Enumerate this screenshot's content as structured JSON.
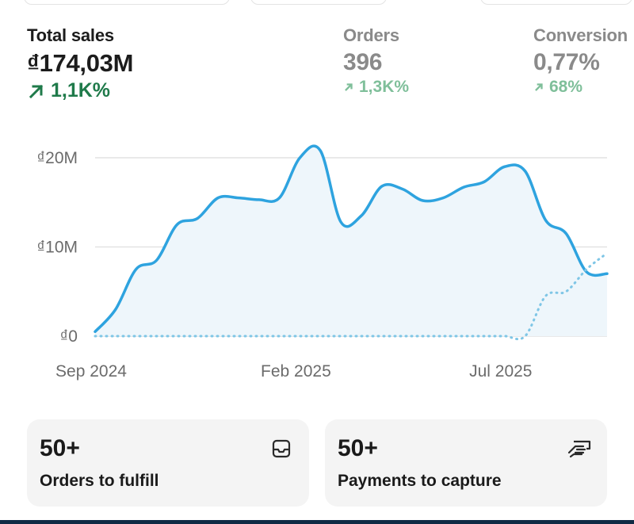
{
  "metrics": [
    {
      "label": "Total sales",
      "value": "₫174,03M",
      "change": "1,1K%"
    },
    {
      "label": "Orders",
      "value": "396",
      "change": "1,3K%"
    },
    {
      "label": "Conversion",
      "value": "0,77%",
      "change": "68%"
    }
  ],
  "chart_data": {
    "type": "line",
    "x_labels": [
      "Sep 2024",
      "Feb 2025",
      "Jul 2025"
    ],
    "y_ticks": [
      "₫0",
      "₫10M",
      "₫20M"
    ],
    "ylim": [
      0,
      20
    ],
    "y_unit": "₫M",
    "grid": true,
    "series": [
      {
        "style": "solid",
        "color": "#2ea3df",
        "values": [
          0.5,
          3,
          7.5,
          8.5,
          12.5,
          13.2,
          15.5,
          15.5,
          15.3,
          15.5,
          20,
          20.8,
          12.8,
          13.5,
          16.8,
          16.5,
          15.2,
          15.5,
          16.7,
          17.3,
          19.0,
          18.5,
          13,
          11.5,
          7.2,
          7.0
        ]
      },
      {
        "style": "dotted",
        "color": "#7fc6e6",
        "values": [
          0,
          0,
          0,
          0,
          0,
          0,
          0,
          0,
          0,
          0,
          0,
          0,
          0,
          0,
          0,
          0,
          0,
          0,
          0,
          0,
          0,
          0,
          4.5,
          5,
          7.5,
          9.3
        ]
      }
    ]
  },
  "cards": [
    {
      "count": "50+",
      "label": "Orders to fulfill",
      "icon": "inbox-icon"
    },
    {
      "count": "50+",
      "label": "Payments to capture",
      "icon": "hand-cash-icon"
    }
  ],
  "colors": {
    "accent": "#2ea3df",
    "positive": "#1f7a4a",
    "positive_muted": "#7fbf9a"
  }
}
